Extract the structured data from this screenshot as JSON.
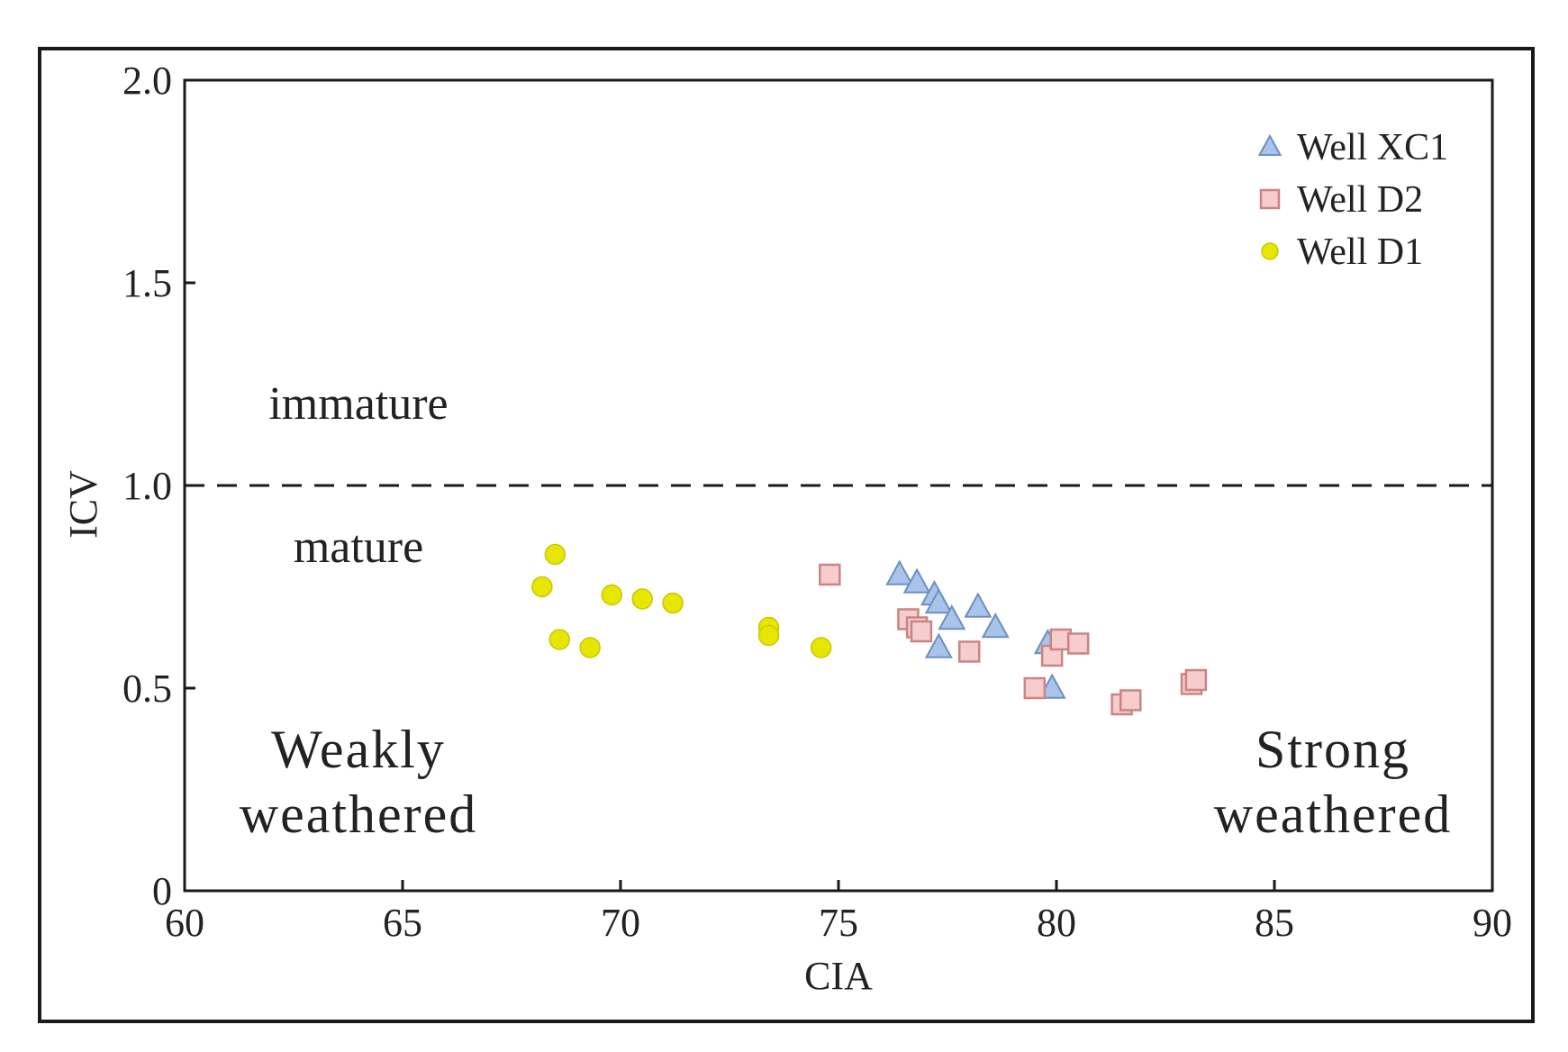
{
  "chart_data": {
    "type": "scatter",
    "title": "",
    "xlabel": "CIA",
    "ylabel": "ICV",
    "xlim": [
      60,
      90
    ],
    "ylim": [
      0,
      2.0
    ],
    "x_ticks": [
      60,
      65,
      70,
      75,
      80,
      85,
      90
    ],
    "x_tick_labels": [
      "60",
      "65",
      "70",
      "75",
      "80",
      "85",
      "90"
    ],
    "y_ticks": [
      0,
      0.5,
      1.0,
      1.5,
      2.0
    ],
    "y_tick_labels": [
      "0",
      "0.5",
      "1.0",
      "1.5",
      "2.0"
    ],
    "grid": false,
    "legend_position": "top-right",
    "reference_line": {
      "y": 1.0,
      "style": "dashed"
    },
    "series": [
      {
        "name": "Well XC1",
        "marker": "triangle",
        "color": "#a9c4ea",
        "edge_color": "#6d8fc0",
        "points": [
          [
            76.4,
            0.78
          ],
          [
            76.8,
            0.76
          ],
          [
            77.2,
            0.73
          ],
          [
            77.3,
            0.71
          ],
          [
            77.6,
            0.67
          ],
          [
            77.3,
            0.6
          ],
          [
            78.2,
            0.7
          ],
          [
            78.6,
            0.65
          ],
          [
            79.8,
            0.61
          ],
          [
            79.9,
            0.5
          ]
        ]
      },
      {
        "name": "Well D2",
        "marker": "square",
        "color": "#f6cccc",
        "edge_color": "#c98585",
        "points": [
          [
            74.8,
            0.78
          ],
          [
            76.6,
            0.67
          ],
          [
            76.8,
            0.65
          ],
          [
            76.9,
            0.64
          ],
          [
            78.0,
            0.59
          ],
          [
            79.5,
            0.5
          ],
          [
            79.9,
            0.58
          ],
          [
            80.1,
            0.62
          ],
          [
            80.5,
            0.61
          ],
          [
            81.5,
            0.46
          ],
          [
            81.7,
            0.47
          ],
          [
            83.1,
            0.51
          ],
          [
            83.2,
            0.52
          ]
        ]
      },
      {
        "name": "Well D1",
        "marker": "circle",
        "color": "#e6e600",
        "edge_color": "#c8c800",
        "points": [
          [
            68.5,
            0.83
          ],
          [
            68.2,
            0.75
          ],
          [
            69.8,
            0.73
          ],
          [
            70.5,
            0.72
          ],
          [
            71.2,
            0.71
          ],
          [
            68.6,
            0.62
          ],
          [
            69.3,
            0.6
          ],
          [
            73.4,
            0.65
          ],
          [
            73.4,
            0.63
          ],
          [
            74.6,
            0.6
          ]
        ]
      }
    ],
    "annotations": {
      "immature": "immature",
      "mature": "mature",
      "weakly_line1": "Weakly",
      "weakly_line2": "weathered",
      "strong_line1": "Strong",
      "strong_line2": "weathered"
    }
  }
}
